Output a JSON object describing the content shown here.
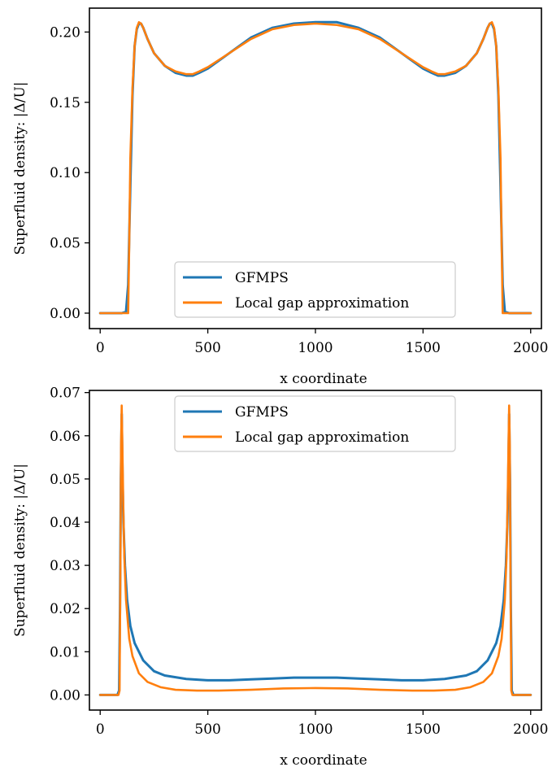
{
  "colors": {
    "gfmps": "#1f77b4",
    "local_gap": "#ff7f0e"
  },
  "chart_data": [
    {
      "type": "line",
      "xlabel": "x coordinate",
      "ylabel": "Superfluid density:  |Δ/U|",
      "xlim": [
        -50,
        2050
      ],
      "ylim": [
        -0.011,
        0.217
      ],
      "xticks": [
        0,
        500,
        1000,
        1500,
        2000
      ],
      "xtick_labels": [
        "0",
        "500",
        "1000",
        "1500",
        "2000"
      ],
      "yticks": [
        0.0,
        0.05,
        0.1,
        0.15,
        0.2
      ],
      "ytick_labels": [
        "0.00",
        "0.05",
        "0.10",
        "0.15",
        "0.20"
      ],
      "grid": false,
      "legend_position": "lower-center",
      "series": [
        {
          "name": "GFMPS",
          "color": "#1f77b4",
          "x": [
            0,
            100,
            120,
            130,
            140,
            150,
            160,
            170,
            180,
            190,
            200,
            220,
            250,
            300,
            350,
            400,
            430,
            460,
            500,
            600,
            700,
            800,
            900,
            1000,
            1100,
            1200,
            1300,
            1400,
            1500,
            1540,
            1570,
            1600,
            1650,
            1700,
            1750,
            1780,
            1800,
            1810,
            1820,
            1830,
            1840,
            1850,
            1860,
            1870,
            1880,
            1900,
            2000
          ],
          "y": [
            0.0,
            0.0,
            0.001,
            0.02,
            0.09,
            0.155,
            0.19,
            0.202,
            0.206,
            0.206,
            0.203,
            0.195,
            0.185,
            0.176,
            0.171,
            0.169,
            0.169,
            0.171,
            0.174,
            0.185,
            0.196,
            0.203,
            0.206,
            0.207,
            0.207,
            0.203,
            0.196,
            0.185,
            0.174,
            0.171,
            0.169,
            0.169,
            0.171,
            0.176,
            0.185,
            0.195,
            0.203,
            0.206,
            0.206,
            0.202,
            0.19,
            0.155,
            0.09,
            0.02,
            0.001,
            0.0,
            0.0
          ]
        },
        {
          "name": "Local gap approximation",
          "color": "#ff7f0e",
          "x": [
            0,
            100,
            130,
            135,
            140,
            150,
            160,
            170,
            180,
            190,
            200,
            220,
            250,
            300,
            350,
            400,
            430,
            460,
            500,
            600,
            700,
            800,
            900,
            1000,
            1100,
            1200,
            1300,
            1400,
            1500,
            1540,
            1570,
            1600,
            1650,
            1700,
            1750,
            1780,
            1800,
            1810,
            1820,
            1830,
            1840,
            1850,
            1860,
            1865,
            1870,
            1900,
            2000
          ],
          "y": [
            0.0,
            0.0,
            0.0,
            0.05,
            0.11,
            0.16,
            0.19,
            0.203,
            0.207,
            0.206,
            0.203,
            0.195,
            0.185,
            0.176,
            0.172,
            0.17,
            0.17,
            0.172,
            0.175,
            0.185,
            0.195,
            0.202,
            0.205,
            0.206,
            0.205,
            0.202,
            0.195,
            0.185,
            0.175,
            0.172,
            0.17,
            0.17,
            0.172,
            0.176,
            0.185,
            0.195,
            0.203,
            0.206,
            0.207,
            0.203,
            0.19,
            0.16,
            0.11,
            0.05,
            0.0,
            0.0,
            0.0
          ]
        }
      ]
    },
    {
      "type": "line",
      "xlabel": "x coordinate",
      "ylabel": "Superfluid density:  |Δ/U|",
      "xlim": [
        -50,
        2050
      ],
      "ylim": [
        -0.0035,
        0.0705
      ],
      "xticks": [
        0,
        500,
        1000,
        1500,
        2000
      ],
      "xtick_labels": [
        "0",
        "500",
        "1000",
        "1500",
        "2000"
      ],
      "yticks": [
        0.0,
        0.01,
        0.02,
        0.03,
        0.04,
        0.05,
        0.06,
        0.07
      ],
      "ytick_labels": [
        "0.00",
        "0.01",
        "0.02",
        "0.03",
        "0.04",
        "0.05",
        "0.06",
        "0.07"
      ],
      "grid": false,
      "legend_position": "upper-center",
      "series": [
        {
          "name": "GFMPS",
          "color": "#1f77b4",
          "x": [
            0,
            80,
            88,
            92,
            96,
            100,
            104,
            108,
            115,
            125,
            140,
            160,
            200,
            250,
            300,
            400,
            500,
            600,
            700,
            800,
            900,
            1000,
            1100,
            1200,
            1300,
            1400,
            1500,
            1600,
            1700,
            1750,
            1800,
            1840,
            1860,
            1875,
            1885,
            1892,
            1896,
            1900,
            1904,
            1908,
            1912,
            1920,
            2000
          ],
          "y": [
            0.0,
            0.0,
            0.001,
            0.02,
            0.05,
            0.065,
            0.05,
            0.04,
            0.03,
            0.022,
            0.016,
            0.012,
            0.008,
            0.0055,
            0.0045,
            0.0037,
            0.0034,
            0.0034,
            0.0036,
            0.0038,
            0.004,
            0.004,
            0.004,
            0.0038,
            0.0036,
            0.0034,
            0.0034,
            0.0037,
            0.0045,
            0.0055,
            0.008,
            0.012,
            0.016,
            0.022,
            0.03,
            0.04,
            0.05,
            0.065,
            0.05,
            0.02,
            0.001,
            0.0,
            0.0
          ]
        },
        {
          "name": "Local gap approximation",
          "color": "#ff7f0e",
          "x": [
            0,
            85,
            90,
            94,
            97,
            100,
            103,
            107,
            112,
            120,
            135,
            150,
            180,
            220,
            280,
            350,
            450,
            550,
            700,
            850,
            1000,
            1150,
            1300,
            1450,
            1550,
            1650,
            1720,
            1780,
            1820,
            1850,
            1865,
            1880,
            1888,
            1893,
            1897,
            1900,
            1903,
            1906,
            1910,
            1915,
            2000
          ],
          "y": [
            0.0,
            0.0,
            0.001,
            0.03,
            0.058,
            0.067,
            0.058,
            0.045,
            0.032,
            0.022,
            0.013,
            0.009,
            0.005,
            0.003,
            0.0018,
            0.0012,
            0.001,
            0.001,
            0.0012,
            0.0015,
            0.0016,
            0.0015,
            0.0012,
            0.001,
            0.001,
            0.0012,
            0.0018,
            0.003,
            0.005,
            0.009,
            0.013,
            0.022,
            0.032,
            0.045,
            0.058,
            0.067,
            0.058,
            0.03,
            0.001,
            0.0,
            0.0
          ]
        }
      ]
    }
  ]
}
